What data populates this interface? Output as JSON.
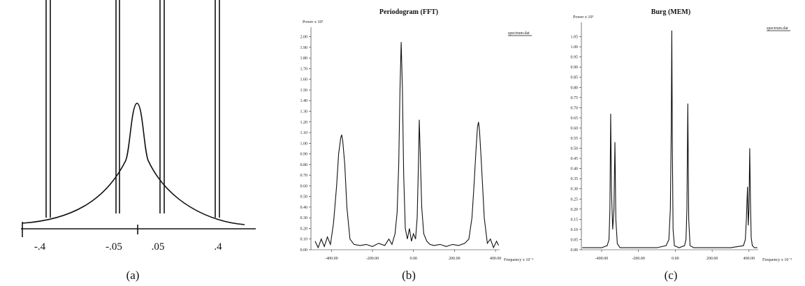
{
  "figure_a": {
    "xtick_labels": [
      "-.4",
      "-.05",
      ".05",
      ".4"
    ],
    "caption": "(a)"
  },
  "chart_data": [
    {
      "type": "line",
      "title": "Periodogram (FFT)",
      "ylabel": "Power x 10³",
      "xlabel": "Frequency x 10⁻³",
      "caption": "(b)",
      "legend": "upper right",
      "x": [
        -480,
        -465,
        -450,
        -435,
        -420,
        -405,
        -390,
        -375,
        -365,
        -355,
        -350,
        -345,
        -335,
        -325,
        -310,
        -290,
        -260,
        -230,
        -200,
        -170,
        -140,
        -120,
        -105,
        -90,
        -80,
        -72,
        -66,
        -60,
        -54,
        -48,
        -40,
        -30,
        -20,
        -10,
        0,
        10,
        18,
        24,
        28,
        33,
        40,
        50,
        65,
        80,
        100,
        130,
        160,
        190,
        220,
        250,
        270,
        285,
        295,
        305,
        312,
        317,
        322,
        330,
        345,
        360,
        375,
        390,
        405,
        415
      ],
      "series": [
        {
          "name": "spectrum.dat",
          "color": "#111111",
          "values": [
            0.08,
            0.02,
            0.1,
            0.03,
            0.12,
            0.05,
            0.25,
            0.6,
            0.9,
            1.05,
            1.08,
            1.02,
            0.8,
            0.4,
            0.1,
            0.05,
            0.04,
            0.05,
            0.03,
            0.06,
            0.04,
            0.1,
            0.05,
            0.15,
            0.35,
            0.8,
            1.5,
            1.95,
            1.5,
            0.7,
            0.2,
            0.1,
            0.2,
            0.08,
            0.15,
            0.1,
            0.3,
            0.8,
            1.22,
            0.9,
            0.4,
            0.15,
            0.08,
            0.05,
            0.04,
            0.05,
            0.03,
            0.05,
            0.04,
            0.06,
            0.1,
            0.3,
            0.6,
            0.95,
            1.15,
            1.2,
            1.12,
            0.85,
            0.3,
            0.06,
            0.1,
            0.02,
            0.08,
            0.04
          ]
        }
      ],
      "xlim": [
        -500,
        420
      ],
      "xticks": [
        {
          "value": -400,
          "label": "-400.00"
        },
        {
          "value": -200,
          "label": "-200.00"
        },
        {
          "value": 0,
          "label": "0.00"
        },
        {
          "value": 200,
          "label": "200.00"
        },
        {
          "value": 400,
          "label": "400.00"
        }
      ],
      "ylim": [
        0,
        2.05
      ],
      "yticks": [
        {
          "value": 0,
          "label": "0.00"
        },
        {
          "value": 0.1,
          "label": "0.10"
        },
        {
          "value": 0.2,
          "label": "0.20"
        },
        {
          "value": 0.3,
          "label": "0.30"
        },
        {
          "value": 0.4,
          "label": "0.40"
        },
        {
          "value": 0.5,
          "label": "0.50"
        },
        {
          "value": 0.6,
          "label": "0.60"
        },
        {
          "value": 0.7,
          "label": "0.70"
        },
        {
          "value": 0.8,
          "label": "0.80"
        },
        {
          "value": 0.9,
          "label": "0.90"
        },
        {
          "value": 1,
          "label": "1.00"
        },
        {
          "value": 1.1,
          "label": "1.10"
        },
        {
          "value": 1.2,
          "label": "1.20"
        },
        {
          "value": 1.3,
          "label": "1.30"
        },
        {
          "value": 1.4,
          "label": "1.40"
        },
        {
          "value": 1.5,
          "label": "1.50"
        },
        {
          "value": 1.6,
          "label": "1.60"
        },
        {
          "value": 1.7,
          "label": "1.70"
        },
        {
          "value": 1.8,
          "label": "1.80"
        },
        {
          "value": 1.9,
          "label": "1.90"
        },
        {
          "value": 2,
          "label": "2.00"
        }
      ]
    },
    {
      "type": "line",
      "title": "Burg (MEM)",
      "ylabel": "Power x 10³",
      "xlabel": "Frequency x 10⁻³",
      "caption": "(c)",
      "legend": "upper right",
      "x": [
        -505,
        -450,
        -400,
        -370,
        -360,
        -355,
        -351,
        -347,
        -340,
        -333,
        -328,
        -323,
        -315,
        -300,
        -200,
        -100,
        -50,
        -35,
        -27,
        -22,
        -19,
        -16,
        -12,
        -5,
        20,
        50,
        58,
        63,
        68,
        73,
        80,
        100,
        200,
        300,
        370,
        380,
        386,
        392,
        396,
        400,
        404,
        408,
        412,
        418,
        430,
        445
      ],
      "series": [
        {
          "name": "spectrum.dat",
          "color": "#111111",
          "values": [
            0.01,
            0.01,
            0.01,
            0.02,
            0.05,
            0.2,
            0.67,
            0.3,
            0.1,
            0.2,
            0.53,
            0.15,
            0.03,
            0.01,
            0.01,
            0.01,
            0.02,
            0.05,
            0.2,
            0.6,
            1.08,
            0.5,
            0.1,
            0.02,
            0.01,
            0.02,
            0.05,
            0.2,
            0.72,
            0.15,
            0.02,
            0.01,
            0.01,
            0.01,
            0.02,
            0.05,
            0.15,
            0.31,
            0.12,
            0.2,
            0.5,
            0.25,
            0.06,
            0.02,
            0.01,
            0.01
          ]
        }
      ],
      "xlim": [
        -510,
        450
      ],
      "xticks": [
        {
          "value": -400,
          "label": "-400.00"
        },
        {
          "value": -200,
          "label": "-200.00"
        },
        {
          "value": 0,
          "label": "0.00"
        },
        {
          "value": 200,
          "label": "200.00"
        },
        {
          "value": 400,
          "label": "400.00"
        }
      ],
      "ylim": [
        0,
        1.1
      ],
      "yticks": [
        {
          "value": 0,
          "label": "0.00"
        },
        {
          "value": 0.05,
          "label": "0.05"
        },
        {
          "value": 0.1,
          "label": "0.10"
        },
        {
          "value": 0.15,
          "label": "0.15"
        },
        {
          "value": 0.2,
          "label": "0.20"
        },
        {
          "value": 0.25,
          "label": "0.25"
        },
        {
          "value": 0.3,
          "label": "0.30"
        },
        {
          "value": 0.35,
          "label": "0.35"
        },
        {
          "value": 0.4,
          "label": "0.40"
        },
        {
          "value": 0.45,
          "label": "0.45"
        },
        {
          "value": 0.5,
          "label": "0.50"
        },
        {
          "value": 0.55,
          "label": "0.55"
        },
        {
          "value": 0.6,
          "label": "0.60"
        },
        {
          "value": 0.65,
          "label": "0.65"
        },
        {
          "value": 0.7,
          "label": "0.70"
        },
        {
          "value": 0.75,
          "label": "0.75"
        },
        {
          "value": 0.8,
          "label": "0.80"
        },
        {
          "value": 0.85,
          "label": "0.85"
        },
        {
          "value": 0.9,
          "label": "0.90"
        },
        {
          "value": 0.95,
          "label": "0.95"
        },
        {
          "value": 1,
          "label": "1.00"
        },
        {
          "value": 1.05,
          "label": "1.05"
        }
      ]
    }
  ]
}
